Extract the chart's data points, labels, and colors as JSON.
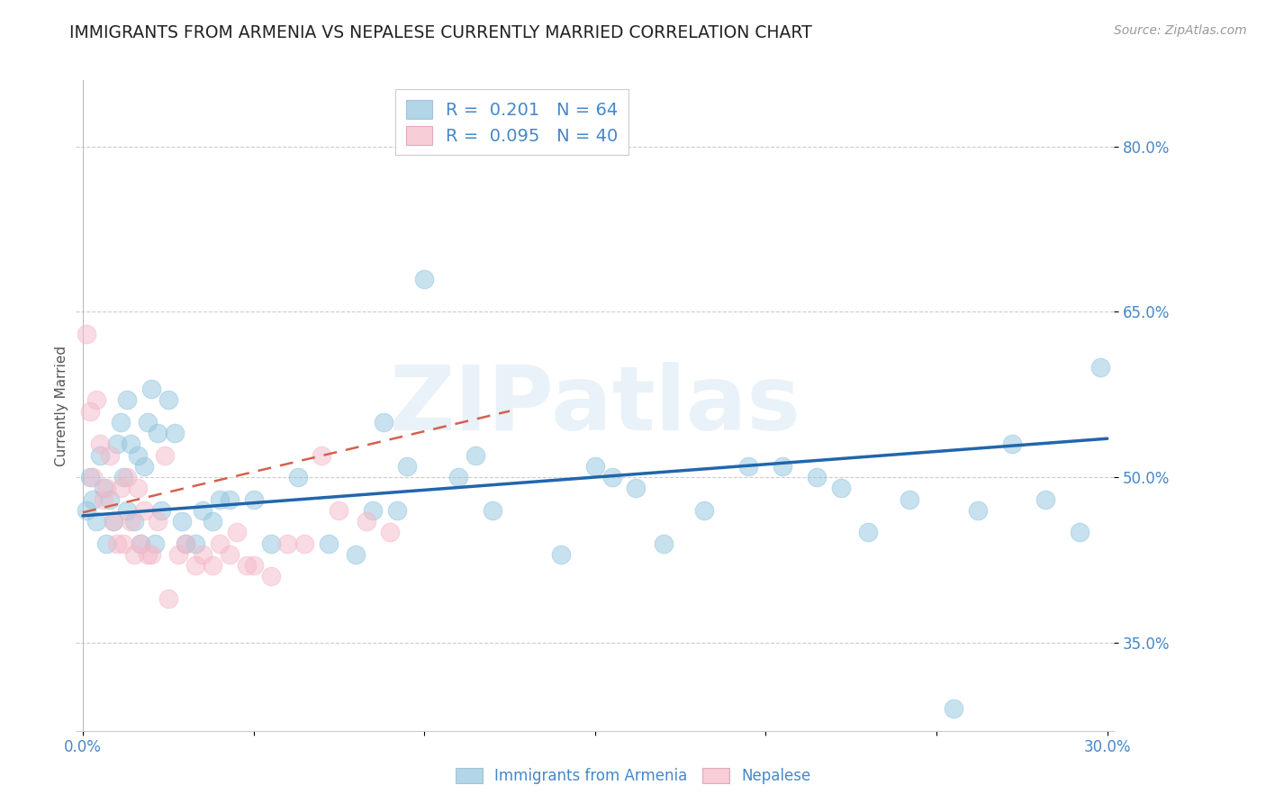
{
  "title": "IMMIGRANTS FROM ARMENIA VS NEPALESE CURRENTLY MARRIED CORRELATION CHART",
  "source": "Source: ZipAtlas.com",
  "ylabel": "Currently Married",
  "watermark": "ZIPatlas",
  "xlim": [
    -0.002,
    0.302
  ],
  "ylim": [
    0.27,
    0.86
  ],
  "yticks": [
    0.35,
    0.5,
    0.65,
    0.8
  ],
  "ytick_labels": [
    "35.0%",
    "50.0%",
    "65.0%",
    "80.0%"
  ],
  "xticks": [
    0.0,
    0.05,
    0.1,
    0.15,
    0.2,
    0.25,
    0.3
  ],
  "xtick_labels": [
    "0.0%",
    "",
    "",
    "",
    "",
    "",
    "30.0%"
  ],
  "series1_color": "#92c5de",
  "series2_color": "#f4b8c8",
  "series1_label": "Immigrants from Armenia",
  "series2_label": "Nepalese",
  "series1_R": "0.201",
  "series1_N": "64",
  "series2_R": "0.095",
  "series2_N": "40",
  "trend1_color": "#2166ac",
  "trend2_color": "#d6604d",
  "background_color": "#ffffff",
  "axis_color": "#4488cc",
  "title_color": "#222222",
  "title_fontsize": 13.5,
  "label_fontsize": 11,
  "tick_fontsize": 12,
  "series1_x": [
    0.001,
    0.002,
    0.003,
    0.004,
    0.005,
    0.006,
    0.007,
    0.008,
    0.009,
    0.01,
    0.011,
    0.012,
    0.013,
    0.013,
    0.014,
    0.015,
    0.016,
    0.017,
    0.018,
    0.019,
    0.02,
    0.021,
    0.022,
    0.023,
    0.025,
    0.027,
    0.029,
    0.03,
    0.033,
    0.035,
    0.038,
    0.04,
    0.043,
    0.05,
    0.055,
    0.063,
    0.072,
    0.08,
    0.085,
    0.088,
    0.092,
    0.095,
    0.1,
    0.11,
    0.115,
    0.12,
    0.14,
    0.15,
    0.155,
    0.162,
    0.17,
    0.182,
    0.195,
    0.205,
    0.215,
    0.222,
    0.23,
    0.242,
    0.255,
    0.262,
    0.272,
    0.282,
    0.292,
    0.298
  ],
  "series1_y": [
    0.47,
    0.5,
    0.48,
    0.46,
    0.52,
    0.49,
    0.44,
    0.48,
    0.46,
    0.53,
    0.55,
    0.5,
    0.47,
    0.57,
    0.53,
    0.46,
    0.52,
    0.44,
    0.51,
    0.55,
    0.58,
    0.44,
    0.54,
    0.47,
    0.57,
    0.54,
    0.46,
    0.44,
    0.44,
    0.47,
    0.46,
    0.48,
    0.48,
    0.48,
    0.44,
    0.5,
    0.44,
    0.43,
    0.47,
    0.55,
    0.47,
    0.51,
    0.68,
    0.5,
    0.52,
    0.47,
    0.43,
    0.51,
    0.5,
    0.49,
    0.44,
    0.47,
    0.51,
    0.51,
    0.5,
    0.49,
    0.45,
    0.48,
    0.29,
    0.47,
    0.53,
    0.48,
    0.45,
    0.6
  ],
  "series2_x": [
    0.001,
    0.002,
    0.003,
    0.004,
    0.005,
    0.006,
    0.007,
    0.008,
    0.009,
    0.01,
    0.011,
    0.012,
    0.013,
    0.014,
    0.015,
    0.016,
    0.017,
    0.018,
    0.019,
    0.02,
    0.022,
    0.024,
    0.025,
    0.028,
    0.03,
    0.033,
    0.035,
    0.038,
    0.04,
    0.043,
    0.045,
    0.048,
    0.05,
    0.055,
    0.06,
    0.065,
    0.07,
    0.075,
    0.083,
    0.09
  ],
  "series2_y": [
    0.63,
    0.56,
    0.5,
    0.57,
    0.53,
    0.48,
    0.49,
    0.52,
    0.46,
    0.44,
    0.49,
    0.44,
    0.5,
    0.46,
    0.43,
    0.49,
    0.44,
    0.47,
    0.43,
    0.43,
    0.46,
    0.52,
    0.39,
    0.43,
    0.44,
    0.42,
    0.43,
    0.42,
    0.44,
    0.43,
    0.45,
    0.42,
    0.42,
    0.41,
    0.44,
    0.44,
    0.52,
    0.47,
    0.46,
    0.45
  ],
  "trend1_x": [
    0.0,
    0.3
  ],
  "trend1_y": [
    0.465,
    0.535
  ],
  "trend2_x": [
    0.0,
    0.125
  ],
  "trend2_y": [
    0.468,
    0.56
  ]
}
